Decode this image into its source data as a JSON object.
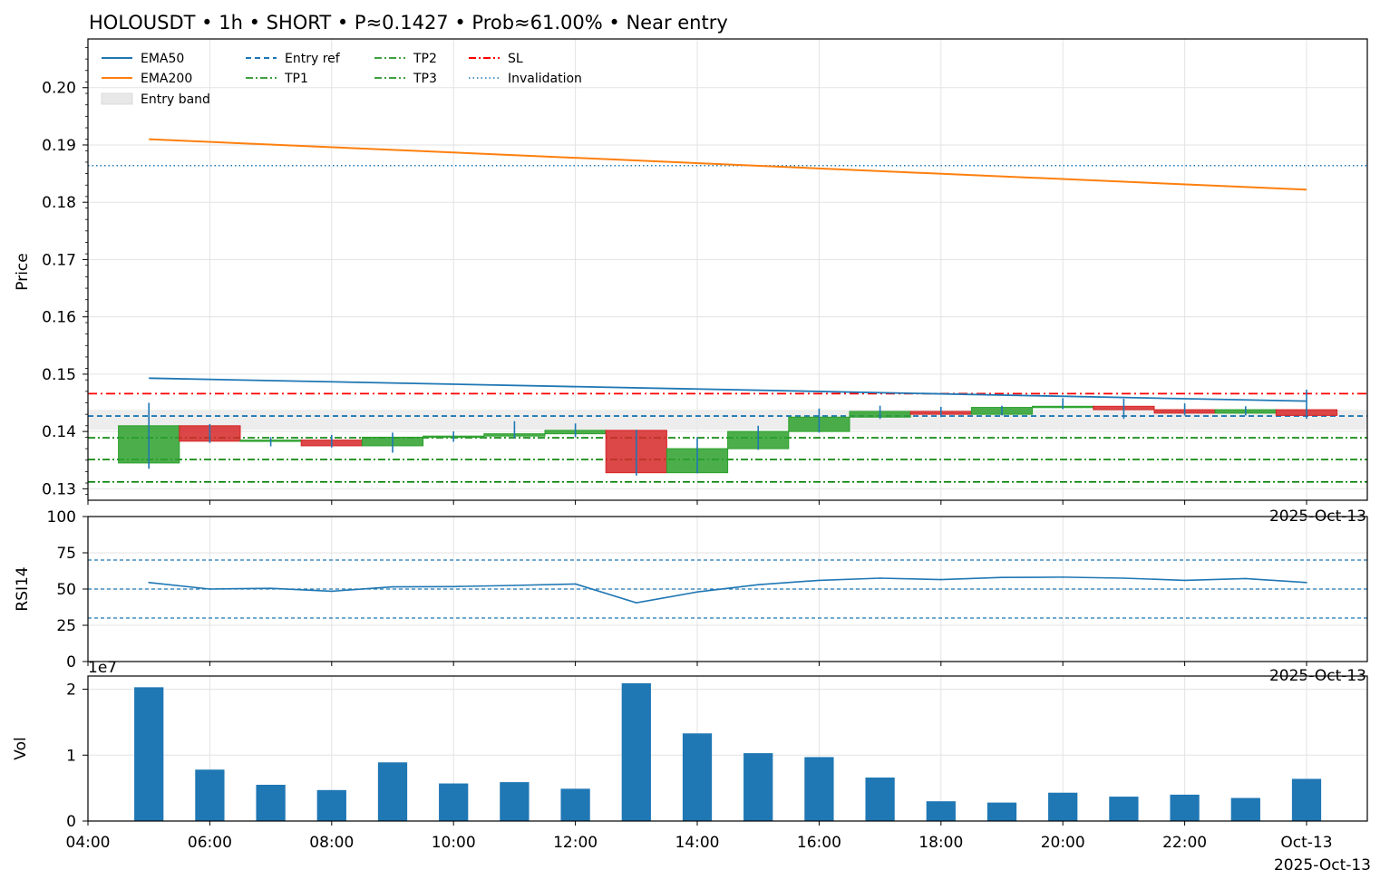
{
  "title": "HOLOUSDT • 1h • SHORT • P≈0.1427 • Prob≈61.00% • Near entry",
  "colors": {
    "up": "#2ca02c",
    "down": "#d62728",
    "ema50": "#1f77b4",
    "ema200": "#ff7f0e",
    "entry": "#1f77b4",
    "tp": "#008000",
    "sl": "#ff0000",
    "invalid": "#1f77b4",
    "band": "#e8e8e8",
    "vol": "#1f77b4",
    "rsi": "#1f77b4"
  },
  "chart_data": [
    {
      "type": "candlestick",
      "ylabel": "Price",
      "ylim": [
        0.128,
        0.2085
      ],
      "yticks": [
        0.13,
        0.14,
        0.15,
        0.16,
        0.17,
        0.18,
        0.19,
        0.2
      ],
      "ytick_labels": [
        "0.13",
        "0.14",
        "0.15",
        "0.16",
        "0.17",
        "0.18",
        "0.19",
        "0.20"
      ],
      "x_offset_label": "2025-Oct-13",
      "legend": {
        "position": "top-left",
        "entries": [
          "EMA50",
          "EMA200",
          "Entry band",
          "Entry ref",
          "TP1",
          "TP2",
          "TP3",
          "SL",
          "Invalidation"
        ]
      },
      "candles": [
        {
          "t": "05:00",
          "o": 0.1345,
          "h": 0.145,
          "l": 0.1335,
          "c": 0.141
        },
        {
          "t": "06:00",
          "o": 0.141,
          "h": 0.1413,
          "l": 0.138,
          "c": 0.1383
        },
        {
          "t": "07:00",
          "o": 0.1383,
          "h": 0.139,
          "l": 0.1374,
          "c": 0.1385
        },
        {
          "t": "08:00",
          "o": 0.1385,
          "h": 0.1394,
          "l": 0.1372,
          "c": 0.1375
        },
        {
          "t": "09:00",
          "o": 0.1375,
          "h": 0.1398,
          "l": 0.1363,
          "c": 0.139
        },
        {
          "t": "10:00",
          "o": 0.139,
          "h": 0.14,
          "l": 0.1382,
          "c": 0.1392
        },
        {
          "t": "11:00",
          "o": 0.1392,
          "h": 0.1418,
          "l": 0.1388,
          "c": 0.1396
        },
        {
          "t": "12:00",
          "o": 0.1396,
          "h": 0.1414,
          "l": 0.139,
          "c": 0.1402
        },
        {
          "t": "13:00",
          "o": 0.1402,
          "h": 0.1403,
          "l": 0.1323,
          "c": 0.1328
        },
        {
          "t": "14:00",
          "o": 0.1328,
          "h": 0.139,
          "l": 0.1327,
          "c": 0.137
        },
        {
          "t": "15:00",
          "o": 0.137,
          "h": 0.141,
          "l": 0.1368,
          "c": 0.14
        },
        {
          "t": "16:00",
          "o": 0.14,
          "h": 0.144,
          "l": 0.1398,
          "c": 0.1425
        },
        {
          "t": "17:00",
          "o": 0.1425,
          "h": 0.1445,
          "l": 0.1422,
          "c": 0.1435
        },
        {
          "t": "18:00",
          "o": 0.1435,
          "h": 0.1443,
          "l": 0.1425,
          "c": 0.143
        },
        {
          "t": "19:00",
          "o": 0.143,
          "h": 0.1445,
          "l": 0.1428,
          "c": 0.1442
        },
        {
          "t": "20:00",
          "o": 0.1442,
          "h": 0.1458,
          "l": 0.1439,
          "c": 0.1444
        },
        {
          "t": "21:00",
          "o": 0.1444,
          "h": 0.1457,
          "l": 0.1422,
          "c": 0.1438
        },
        {
          "t": "22:00",
          "o": 0.1438,
          "h": 0.1449,
          "l": 0.1428,
          "c": 0.1432
        },
        {
          "t": "23:00",
          "o": 0.1432,
          "h": 0.1444,
          "l": 0.1428,
          "c": 0.1438
        },
        {
          "t": "00:00",
          "o": 0.1438,
          "h": 0.1473,
          "l": 0.1422,
          "c": 0.1428
        }
      ],
      "ema50": {
        "start": 0.1493,
        "end": 0.1453
      },
      "ema200": {
        "start": 0.191,
        "end": 0.1822
      },
      "entry_band": [
        0.1403,
        0.1438
      ],
      "levels": {
        "entry_ref": 0.1427,
        "sl": 0.1466,
        "tp1": 0.1389,
        "tp2": 0.1351,
        "tp3": 0.1312,
        "invalidation": 0.1864
      }
    },
    {
      "type": "line",
      "ylabel": "RSI14",
      "ylim": [
        0,
        100
      ],
      "yticks": [
        0,
        25,
        50,
        75,
        100
      ],
      "ref_lines": [
        30,
        50,
        70
      ],
      "x_offset_label": "2025-Oct-13",
      "values": [
        54.5,
        50.0,
        50.5,
        48.5,
        51.5,
        51.7,
        52.5,
        53.5,
        40.5,
        48.0,
        53.0,
        56.0,
        57.5,
        56.5,
        58.0,
        58.2,
        57.5,
        56.0,
        57.2,
        54.5
      ]
    },
    {
      "type": "bar",
      "ylabel": "Vol",
      "scale_label": "1e7",
      "ylim": [
        0,
        2.2
      ],
      "yticks": [
        0,
        1,
        2
      ],
      "values": [
        2.03,
        0.78,
        0.55,
        0.47,
        0.89,
        0.57,
        0.59,
        0.49,
        2.09,
        1.33,
        1.03,
        0.97,
        0.66,
        0.3,
        0.28,
        0.43,
        0.37,
        0.4,
        0.35,
        0.64
      ],
      "xticks": [
        "04:00",
        "06:00",
        "08:00",
        "10:00",
        "12:00",
        "14:00",
        "16:00",
        "18:00",
        "20:00",
        "22:00",
        "Oct-13"
      ],
      "x_offset_label": "2025-Oct-13"
    }
  ]
}
